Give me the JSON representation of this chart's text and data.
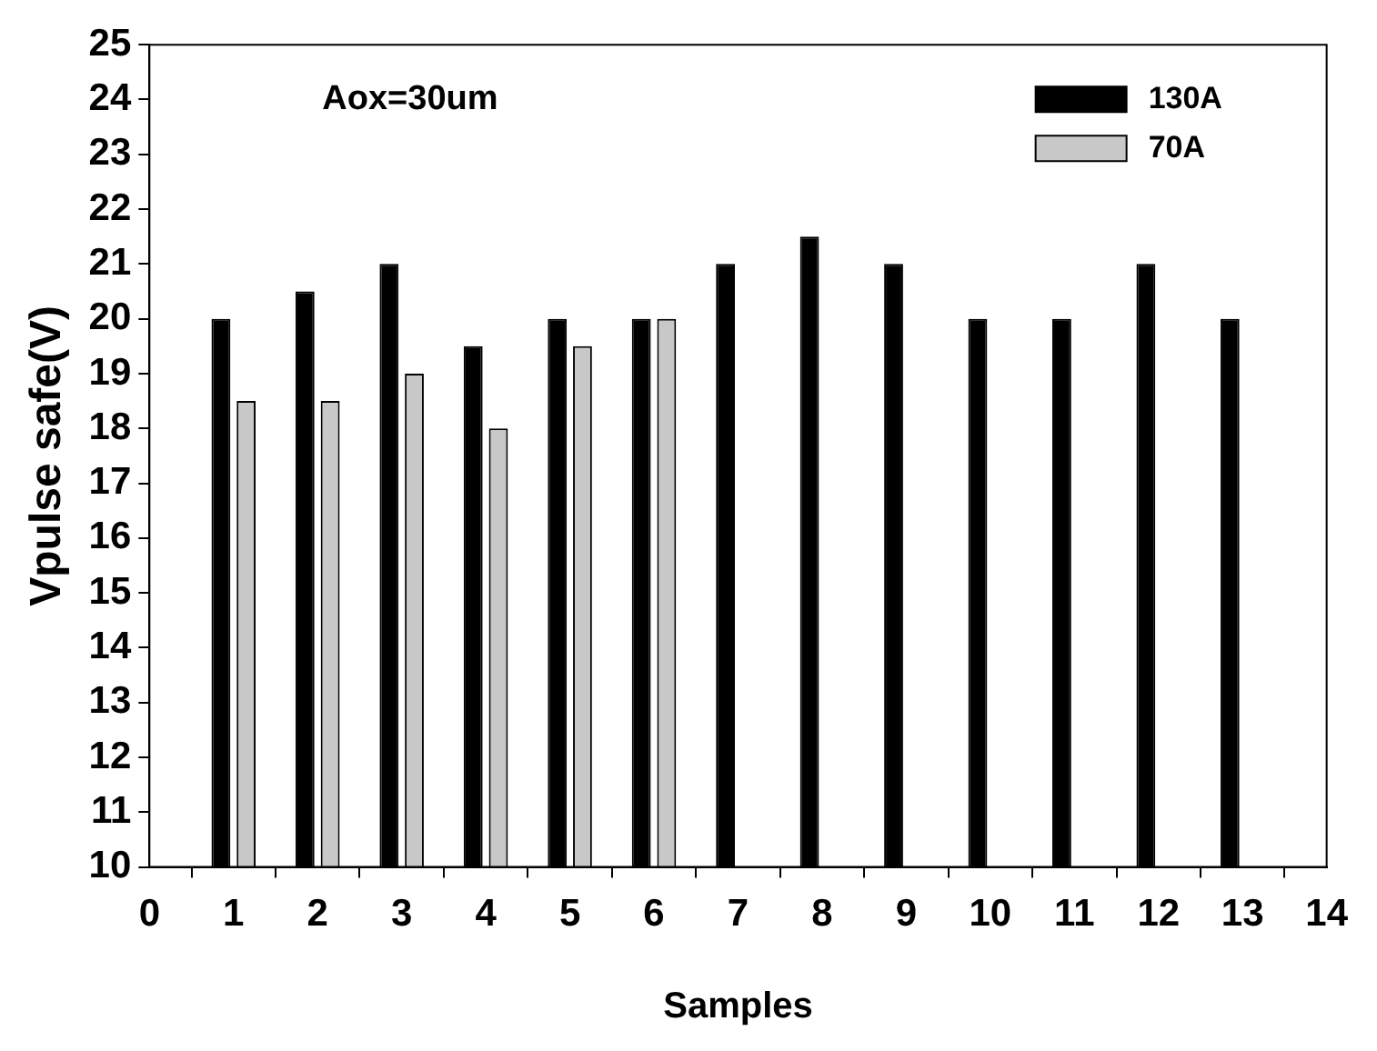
{
  "chart_data": {
    "type": "bar",
    "xlabel": "Samples",
    "ylabel": "Vpulse safe(V)",
    "annotations": [
      "Aox=30um"
    ],
    "x": [
      1,
      2,
      3,
      4,
      5,
      6,
      7,
      8,
      9,
      10,
      11,
      12,
      13
    ],
    "series": [
      {
        "name": "130A",
        "color": "#000000",
        "values": [
          20,
          20.5,
          21,
          19.5,
          20,
          20,
          21,
          21.5,
          21,
          20,
          20,
          21,
          20
        ]
      },
      {
        "name": "70A",
        "color": "#c8c8c8",
        "values": [
          18.5,
          18.5,
          19,
          18,
          19.5,
          20,
          null,
          null,
          null,
          null,
          null,
          null,
          null
        ]
      }
    ],
    "xlim": [
      0,
      14
    ],
    "xticks": [
      0,
      1,
      2,
      3,
      4,
      5,
      6,
      7,
      8,
      9,
      10,
      11,
      12,
      13,
      14
    ],
    "ylim": [
      10,
      25
    ],
    "yticks": [
      10,
      11,
      12,
      13,
      14,
      15,
      16,
      17,
      18,
      19,
      20,
      21,
      22,
      23,
      24,
      25
    ],
    "grid": false,
    "legend": "top right"
  }
}
